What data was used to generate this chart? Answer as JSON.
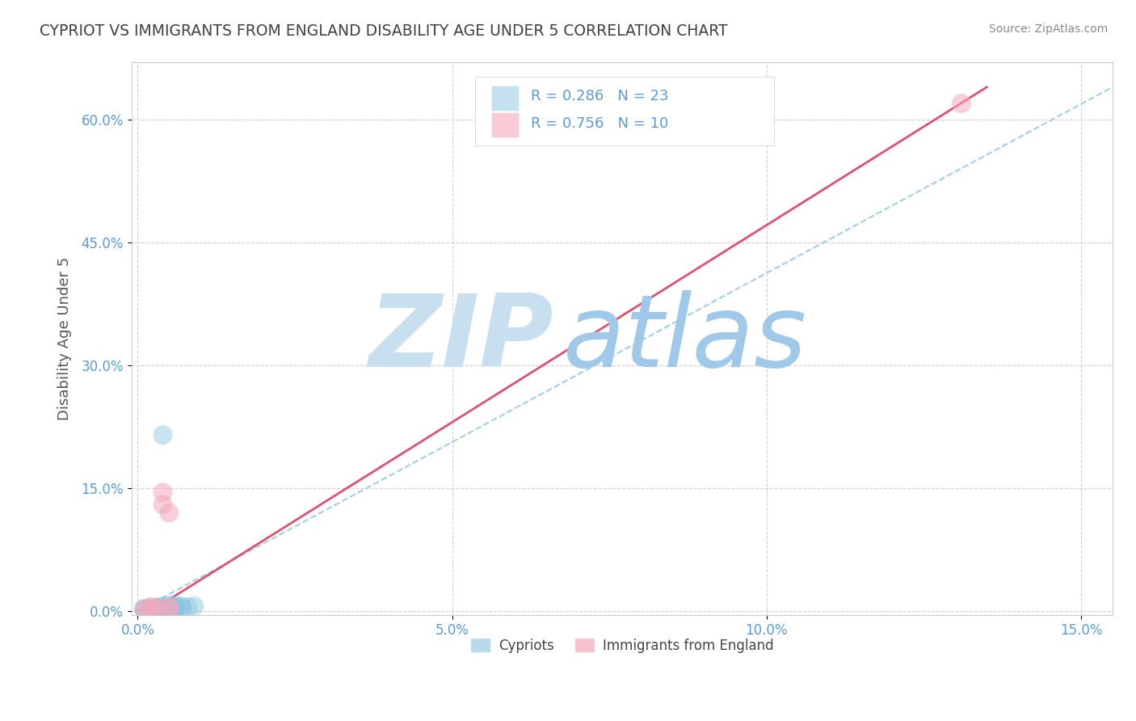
{
  "title": "CYPRIOT VS IMMIGRANTS FROM ENGLAND DISABILITY AGE UNDER 5 CORRELATION CHART",
  "source_text": "Source: ZipAtlas.com",
  "ylabel": "Disability Age Under 5",
  "xlim": [
    -0.001,
    0.155
  ],
  "ylim": [
    -0.005,
    0.67
  ],
  "xticks": [
    0.0,
    0.05,
    0.1,
    0.15
  ],
  "yticks": [
    0.0,
    0.15,
    0.3,
    0.45,
    0.6
  ],
  "xtick_labels": [
    "0.0%",
    "5.0%",
    "10.0%",
    "15.0%"
  ],
  "ytick_labels": [
    "0.0%",
    "15.0%",
    "30.0%",
    "45.0%",
    "60.0%"
  ],
  "grid_color": "#cccccc",
  "background_color": "#ffffff",
  "blue_color": "#89c4e0",
  "pink_color": "#f4a9bc",
  "blue_R": 0.286,
  "blue_N": 23,
  "pink_R": 0.756,
  "pink_N": 10,
  "blue_scatter_x": [
    0.001,
    0.001,
    0.002,
    0.002,
    0.003,
    0.003,
    0.003,
    0.004,
    0.004,
    0.004,
    0.004,
    0.005,
    0.005,
    0.005,
    0.005,
    0.006,
    0.006,
    0.006,
    0.007,
    0.007,
    0.008,
    0.009,
    0.004
  ],
  "blue_scatter_y": [
    0.002,
    0.003,
    0.002,
    0.004,
    0.002,
    0.003,
    0.005,
    0.001,
    0.003,
    0.004,
    0.006,
    0.002,
    0.004,
    0.005,
    0.007,
    0.003,
    0.005,
    0.007,
    0.004,
    0.006,
    0.005,
    0.006,
    0.215
  ],
  "pink_scatter_x": [
    0.001,
    0.002,
    0.002,
    0.003,
    0.004,
    0.004,
    0.005,
    0.005,
    0.005,
    0.131
  ],
  "pink_scatter_y": [
    0.002,
    0.003,
    0.005,
    0.004,
    0.13,
    0.145,
    0.003,
    0.12,
    0.005,
    0.62
  ],
  "blue_line_x": [
    0.0,
    0.155
  ],
  "blue_line_y": [
    0.0,
    0.64
  ],
  "pink_line_x": [
    0.0,
    0.135
  ],
  "pink_line_y": [
    -0.01,
    0.64
  ],
  "wm_text1": "ZIP",
  "wm_text2": "atlas",
  "watermark_color1": "#c8dff0",
  "watermark_color2": "#a0c8e8",
  "title_color": "#404040",
  "tick_label_color": "#5b9bd5",
  "legend_text_color": "#5b9bd5",
  "source_color": "#888888",
  "ylabel_color": "#555555",
  "bottom_legend_color": "#444444"
}
